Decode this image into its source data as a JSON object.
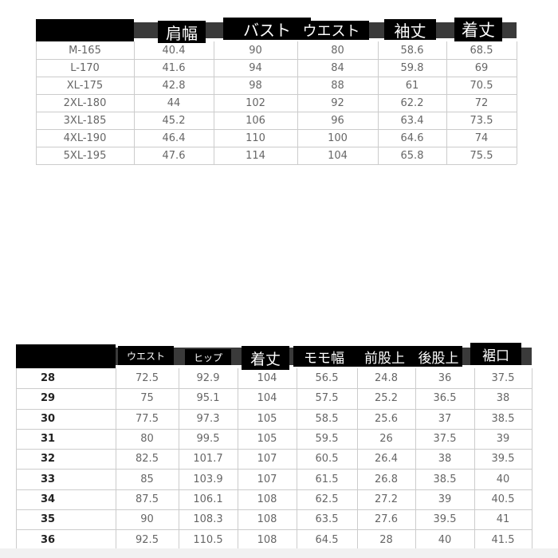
{
  "top_table": {
    "headers": [
      "",
      "肩幅",
      "バスト",
      "ウエスト",
      "袖丈",
      "着丈"
    ],
    "rows": [
      [
        "M-165",
        "40.4",
        "90",
        "80",
        "58.6",
        "68.5"
      ],
      [
        "L-170",
        "41.6",
        "94",
        "84",
        "59.8",
        "69"
      ],
      [
        "XL-175",
        "42.8",
        "98",
        "88",
        "61",
        "70.5"
      ],
      [
        "2XL-180",
        "44",
        "102",
        "92",
        "62.2",
        "72"
      ],
      [
        "3XL-185",
        "45.2",
        "106",
        "96",
        "63.4",
        "73.5"
      ],
      [
        "4XL-190",
        "46.4",
        "110",
        "100",
        "64.6",
        "74"
      ],
      [
        "5XL-195",
        "47.6",
        "114",
        "104",
        "65.8",
        "75.5"
      ]
    ]
  },
  "bottom_table": {
    "headers": [
      "",
      "ウエスト",
      "ヒップ",
      "着丈",
      "モモ幅",
      "前股上",
      "後股上",
      "裾口"
    ],
    "rows": [
      [
        "28",
        "72.5",
        "92.9",
        "104",
        "56.5",
        "24.8",
        "36",
        "37.5"
      ],
      [
        "29",
        "75",
        "95.1",
        "104",
        "57.5",
        "25.2",
        "36.5",
        "38"
      ],
      [
        "30",
        "77.5",
        "97.3",
        "105",
        "58.5",
        "25.6",
        "37",
        "38.5"
      ],
      [
        "31",
        "80",
        "99.5",
        "105",
        "59.5",
        "26",
        "37.5",
        "39"
      ],
      [
        "32",
        "82.5",
        "101.7",
        "107",
        "60.5",
        "26.4",
        "38",
        "39.5"
      ],
      [
        "33",
        "85",
        "103.9",
        "107",
        "61.5",
        "26.8",
        "38.5",
        "40"
      ],
      [
        "34",
        "87.5",
        "106.1",
        "108",
        "62.5",
        "27.2",
        "39",
        "40.5"
      ],
      [
        "35",
        "90",
        "108.3",
        "108",
        "63.5",
        "27.6",
        "39.5",
        "41"
      ],
      [
        "36",
        "92.5",
        "110.5",
        "108",
        "64.5",
        "28",
        "40",
        "41.5"
      ]
    ]
  }
}
